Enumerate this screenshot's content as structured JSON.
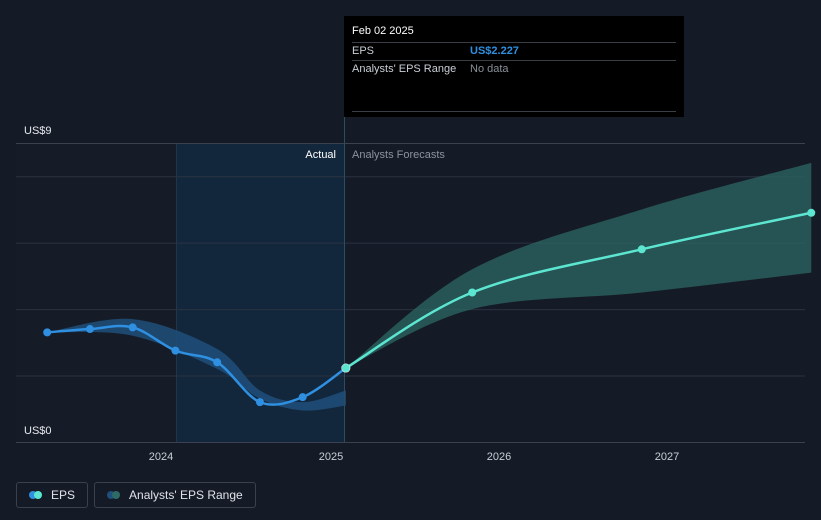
{
  "tooltip": {
    "date": "Feb 02 2025",
    "eps_label": "EPS",
    "eps_value": "US$2.227",
    "range_label": "Analysts' EPS Range",
    "range_value": "No data"
  },
  "labels": {
    "actual": "Actual",
    "forecast": "Analysts Forecasts"
  },
  "legend": [
    {
      "label": "EPS"
    },
    {
      "label": "Analysts' EPS Range"
    }
  ],
  "colors": {
    "background": "#151b26",
    "eps_line": "#2f8fe0",
    "forecast_line": "#5ce6d2",
    "forecast_band": "#2e6b66",
    "actual_band": "#1f4f7a",
    "actual_region": "#13273c"
  },
  "chart_data": {
    "type": "line",
    "title": "",
    "xlabel": "",
    "ylabel": "",
    "ylim": [
      0,
      9
    ],
    "y_ticks": [
      "US$9",
      "US$0"
    ],
    "x_ticks": [
      "2024",
      "2025",
      "2026",
      "2027"
    ],
    "grid": true,
    "series": [
      {
        "name": "EPS",
        "points": [
          [
            "2023-05-01",
            3.3
          ],
          [
            "2023-08-01",
            3.4
          ],
          [
            "2023-11-01",
            3.45
          ],
          [
            "2024-02-01",
            2.75
          ],
          [
            "2024-05-01",
            2.4
          ],
          [
            "2024-08-01",
            1.2
          ],
          [
            "2024-11-01",
            1.35
          ],
          [
            "2025-02-02",
            2.227
          ]
        ]
      },
      {
        "name": "Analysts' Forecasts",
        "points": [
          [
            "2025-02-02",
            2.227
          ],
          [
            "2025-11-01",
            4.5
          ],
          [
            "2026-11-01",
            5.8
          ],
          [
            "2027-11-01",
            6.9
          ]
        ]
      }
    ],
    "ranges": [
      {
        "name": "Analysts' EPS Range",
        "points": [
          [
            "2023-05-01",
            3.3,
            3.3
          ],
          [
            "2023-11-01",
            3.2,
            3.7
          ],
          [
            "2024-05-01",
            2.2,
            2.8
          ],
          [
            "2024-08-01",
            1.3,
            1.55
          ],
          [
            "2024-11-01",
            0.95,
            1.2
          ],
          [
            "2025-02-02",
            1.1,
            1.55
          ]
        ]
      },
      {
        "name": "Analysts' EPS Range",
        "points": [
          [
            "2025-02-02",
            2.227,
            2.227
          ],
          [
            "2025-11-01",
            4.0,
            5.2
          ],
          [
            "2026-11-01",
            4.5,
            7.0
          ],
          [
            "2027-11-01",
            5.1,
            8.4
          ]
        ]
      }
    ]
  }
}
